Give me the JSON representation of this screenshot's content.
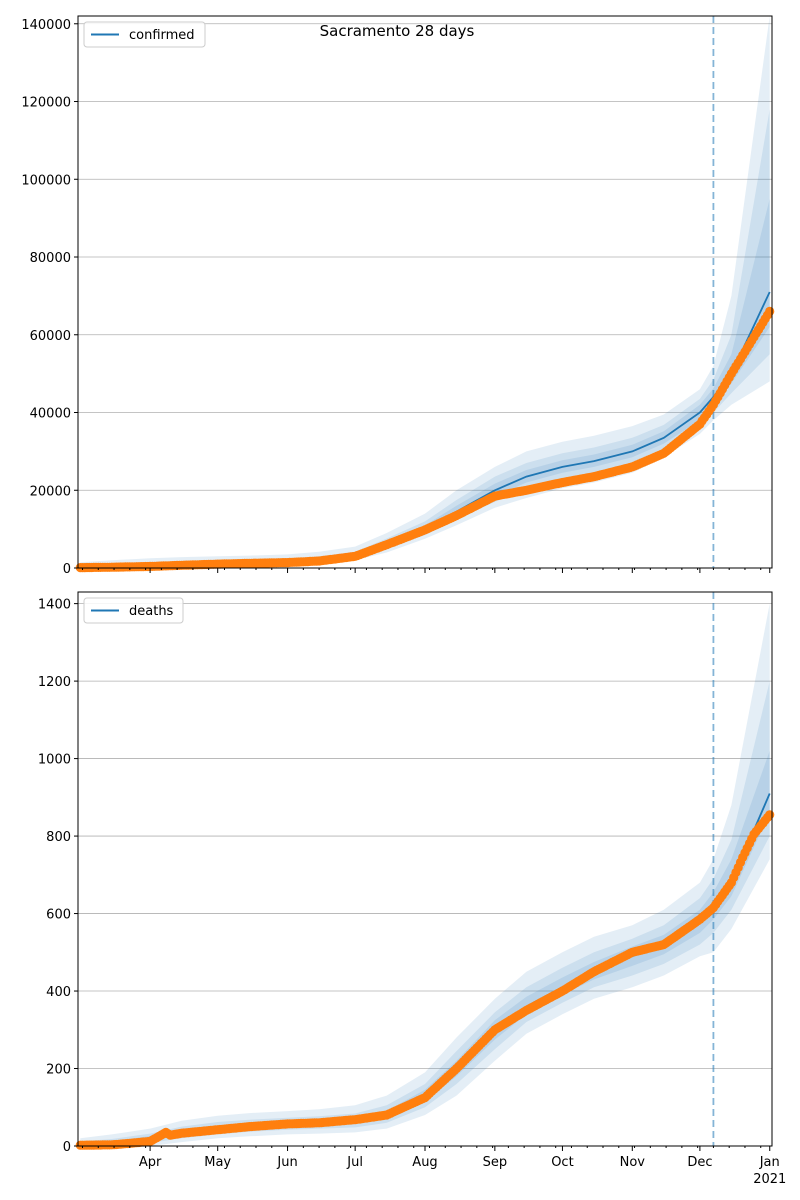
{
  "chart_data": [
    {
      "type": "line",
      "title": "Sacramento 28 days",
      "legend": {
        "label": "confirmed",
        "placement": "top-left"
      },
      "ylim": [
        0,
        142000
      ],
      "yticks": [
        0,
        20000,
        40000,
        60000,
        80000,
        100000,
        120000,
        140000
      ],
      "ytick_labels": [
        "0",
        "20000",
        "40000",
        "60000",
        "80000",
        "100000",
        "120000",
        "140000"
      ],
      "grid": true,
      "colors": {
        "model": "#1f77b4",
        "observed": "#ff7f0e",
        "band": "#1f77b4",
        "vline": "#1f77b4"
      },
      "vline_date": "2020-12-07",
      "forecast": {
        "dates": [
          "2020-03-01",
          "2020-03-15",
          "2020-04-01",
          "2020-04-15",
          "2020-05-01",
          "2020-05-15",
          "2020-06-01",
          "2020-06-15",
          "2020-07-01",
          "2020-07-15",
          "2020-08-01",
          "2020-08-15",
          "2020-09-01",
          "2020-09-15",
          "2020-10-01",
          "2020-10-15",
          "2020-11-01",
          "2020-11-15",
          "2020-12-01",
          "2020-12-07",
          "2020-12-15",
          "2021-01-01"
        ],
        "median": [
          200,
          300,
          500,
          800,
          1100,
          1300,
          1500,
          1900,
          3000,
          6000,
          10000,
          14500,
          20000,
          23500,
          26000,
          27500,
          30000,
          33500,
          40000,
          44000,
          50000,
          71000
        ],
        "bands": [
          {
            "lo": [
              0,
              0,
              100,
              300,
              500,
              700,
              900,
              1200,
              2000,
              4000,
              7500,
              11000,
              15500,
              18000,
              20500,
              22000,
              24500,
              28500,
              34500,
              38000,
              42000,
              48000
            ],
            "hi": [
              1500,
              2000,
              2500,
              2800,
              3000,
              3200,
              3500,
              4200,
              5500,
              9000,
              14000,
              20000,
              26000,
              30000,
              32500,
              34000,
              36500,
              39500,
              46000,
              52000,
              70000,
              142000
            ]
          },
          {
            "lo": [
              50,
              100,
              250,
              500,
              750,
              950,
              1150,
              1500,
              2400,
              4800,
              8500,
              12500,
              17000,
              20500,
              23000,
              24500,
              27000,
              30500,
              36500,
              40000,
              45000,
              55000
            ],
            "hi": [
              900,
              1200,
              1500,
              1800,
              2000,
              2200,
              2400,
              3000,
              4200,
              7600,
              12000,
              17500,
              23500,
              27000,
              29500,
              31000,
              33500,
              36800,
              43500,
              48500,
              60000,
              118000
            ]
          },
          {
            "lo": [
              100,
              200,
              350,
              650,
              900,
              1100,
              1300,
              1700,
              2700,
              5400,
              9200,
              13500,
              18500,
              22000,
              24500,
              26000,
              28500,
              32000,
              38000,
              42000,
              47500,
              62000
            ],
            "hi": [
              400,
              600,
              800,
              1100,
              1400,
              1600,
              1800,
              2300,
              3500,
              6600,
              11000,
              16000,
              21700,
              25200,
              27700,
              29200,
              31700,
              35200,
              42000,
              46200,
              55000,
              95000
            ]
          }
        ]
      },
      "observed": {
        "dates": [
          "2020-03-01",
          "2020-03-15",
          "2020-04-01",
          "2020-04-15",
          "2020-05-01",
          "2020-05-15",
          "2020-06-01",
          "2020-06-15",
          "2020-07-01",
          "2020-07-15",
          "2020-08-01",
          "2020-08-15",
          "2020-09-01",
          "2020-09-15",
          "2020-10-01",
          "2020-10-15",
          "2020-11-01",
          "2020-11-15",
          "2020-12-01",
          "2020-12-07",
          "2020-12-15",
          "2021-01-01"
        ],
        "values": [
          100,
          200,
          400,
          700,
          1000,
          1200,
          1400,
          1800,
          3000,
          6000,
          9800,
          13500,
          18500,
          20000,
          22000,
          23500,
          26000,
          29500,
          37000,
          42000,
          50000,
          66000
        ]
      }
    },
    {
      "type": "line",
      "title": "",
      "legend": {
        "label": "deaths",
        "placement": "top-left"
      },
      "ylim": [
        0,
        1430
      ],
      "yticks": [
        0,
        200,
        400,
        600,
        800,
        1000,
        1200,
        1400
      ],
      "ytick_labels": [
        "0",
        "200",
        "400",
        "600",
        "800",
        "1000",
        "1200",
        "1400"
      ],
      "grid": true,
      "colors": {
        "model": "#1f77b4",
        "observed": "#ff7f0e",
        "band": "#1f77b4",
        "vline": "#1f77b4"
      },
      "vline_date": "2020-12-07",
      "xtick_labels": [
        {
          "date": "2020-04-01",
          "label": "Apr"
        },
        {
          "date": "2020-05-01",
          "label": "May"
        },
        {
          "date": "2020-06-01",
          "label": "Jun"
        },
        {
          "date": "2020-07-01",
          "label": "Jul"
        },
        {
          "date": "2020-08-01",
          "label": "Aug"
        },
        {
          "date": "2020-09-01",
          "label": "Sep"
        },
        {
          "date": "2020-10-01",
          "label": "Oct"
        },
        {
          "date": "2020-11-01",
          "label": "Nov"
        },
        {
          "date": "2020-12-01",
          "label": "Dec"
        },
        {
          "date": "2021-01-01",
          "label": "Jan"
        }
      ],
      "xtick_year_label": "2021",
      "forecast": {
        "dates": [
          "2020-03-01",
          "2020-03-15",
          "2020-04-01",
          "2020-04-15",
          "2020-05-01",
          "2020-05-15",
          "2020-06-01",
          "2020-06-15",
          "2020-07-01",
          "2020-07-15",
          "2020-08-01",
          "2020-08-15",
          "2020-09-01",
          "2020-09-15",
          "2020-10-01",
          "2020-10-15",
          "2020-11-01",
          "2020-11-15",
          "2020-12-01",
          "2020-12-07",
          "2020-12-15",
          "2021-01-01"
        ],
        "median": [
          5,
          7,
          20,
          35,
          45,
          52,
          57,
          60,
          65,
          80,
          130,
          200,
          300,
          360,
          410,
          450,
          490,
          520,
          580,
          620,
          680,
          910
        ],
        "bands": [
          {
            "lo": [
              0,
              0,
              0,
              10,
              20,
              25,
              30,
              32,
              35,
              45,
              80,
              130,
              220,
              290,
              340,
              380,
              410,
              440,
              490,
              500,
              560,
              740
            ],
            "hi": [
              20,
              30,
              45,
              65,
              78,
              85,
              90,
              95,
              105,
              130,
              190,
              280,
              380,
              450,
              500,
              540,
              570,
              610,
              680,
              740,
              880,
              1400
            ]
          },
          {
            "lo": [
              1,
              2,
              8,
              20,
              30,
              37,
              42,
              45,
              48,
              60,
              100,
              160,
              250,
              320,
              370,
              410,
              440,
              470,
              520,
              550,
              610,
              800
            ],
            "hi": [
              12,
              18,
              32,
              50,
              62,
              68,
              73,
              77,
              84,
              105,
              160,
              245,
              345,
              410,
              460,
              500,
              535,
              570,
              640,
              690,
              790,
              1200
            ]
          },
          {
            "lo": [
              3,
              4,
              14,
              27,
              38,
              45,
              50,
              53,
              57,
              70,
              115,
              180,
              275,
              340,
              390,
              430,
              465,
              495,
              550,
              585,
              645,
              860
            ],
            "hi": [
              8,
              11,
              26,
              43,
              53,
              59,
              64,
              68,
              74,
              91,
              145,
              220,
              325,
              385,
              435,
              475,
              515,
              545,
              610,
              655,
              740,
              1020
            ]
          }
        ]
      },
      "observed": {
        "dates": [
          "2020-03-01",
          "2020-03-15",
          "2020-03-25",
          "2020-04-01",
          "2020-04-05",
          "2020-04-08",
          "2020-04-10",
          "2020-04-15",
          "2020-05-01",
          "2020-05-15",
          "2020-06-01",
          "2020-06-15",
          "2020-07-01",
          "2020-07-15",
          "2020-08-01",
          "2020-08-15",
          "2020-09-01",
          "2020-09-15",
          "2020-10-01",
          "2020-10-15",
          "2020-11-01",
          "2020-11-15",
          "2020-12-01",
          "2020-12-07",
          "2020-12-15",
          "2020-12-20",
          "2020-12-25",
          "2021-01-01"
        ],
        "values": [
          2,
          3,
          8,
          12,
          25,
          35,
          28,
          33,
          42,
          50,
          57,
          60,
          68,
          80,
          125,
          200,
          300,
          350,
          400,
          450,
          500,
          520,
          585,
          615,
          680,
          745,
          805,
          855
        ]
      }
    }
  ]
}
